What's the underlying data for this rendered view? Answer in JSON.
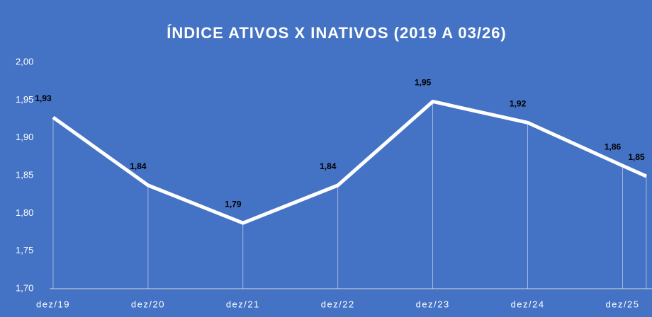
{
  "chart_data": {
    "type": "line",
    "title": "ÍNDICE ATIVOS X INATIVOS (2019 A 03/26)",
    "x": [
      "2019-12",
      "2020-12",
      "2021-12",
      "2022-12",
      "2023-12",
      "2024-12",
      "2025-12",
      "2026-03"
    ],
    "series": [
      {
        "color": "#ffffff",
        "values": [
          1.927,
          1.837,
          1.787,
          1.837,
          1.948,
          1.92,
          1.863,
          1.849
        ],
        "value_labels": [
          "1,93",
          "1,84",
          "1,79",
          "1,84",
          "1,95",
          "1,92",
          "1,86",
          "1,85"
        ]
      }
    ],
    "xlim": [
      "2019-12",
      "2026-03"
    ],
    "xticks": [
      {
        "value": "2019-12",
        "label": "dez/19"
      },
      {
        "value": "2020-12",
        "label": "dez/20"
      },
      {
        "value": "2021-12",
        "label": "dez/21"
      },
      {
        "value": "2022-12",
        "label": "dez/22"
      },
      {
        "value": "2023-12",
        "label": "dez/23"
      },
      {
        "value": "2024-12",
        "label": "dez/24"
      },
      {
        "value": "2025-12",
        "label": "dez/25"
      }
    ],
    "ylim": [
      1.7,
      2.0
    ],
    "yticks": [
      {
        "value": 1.7,
        "label": "1,70"
      },
      {
        "value": 1.75,
        "label": "1,75"
      },
      {
        "value": 1.8,
        "label": "1,80"
      },
      {
        "value": 1.85,
        "label": "1,85"
      },
      {
        "value": 1.9,
        "label": "1,90"
      },
      {
        "value": 1.95,
        "label": "1,95"
      },
      {
        "value": 2.0,
        "label": "2,00"
      }
    ],
    "background": "#4472c4",
    "drop_lines": true
  }
}
